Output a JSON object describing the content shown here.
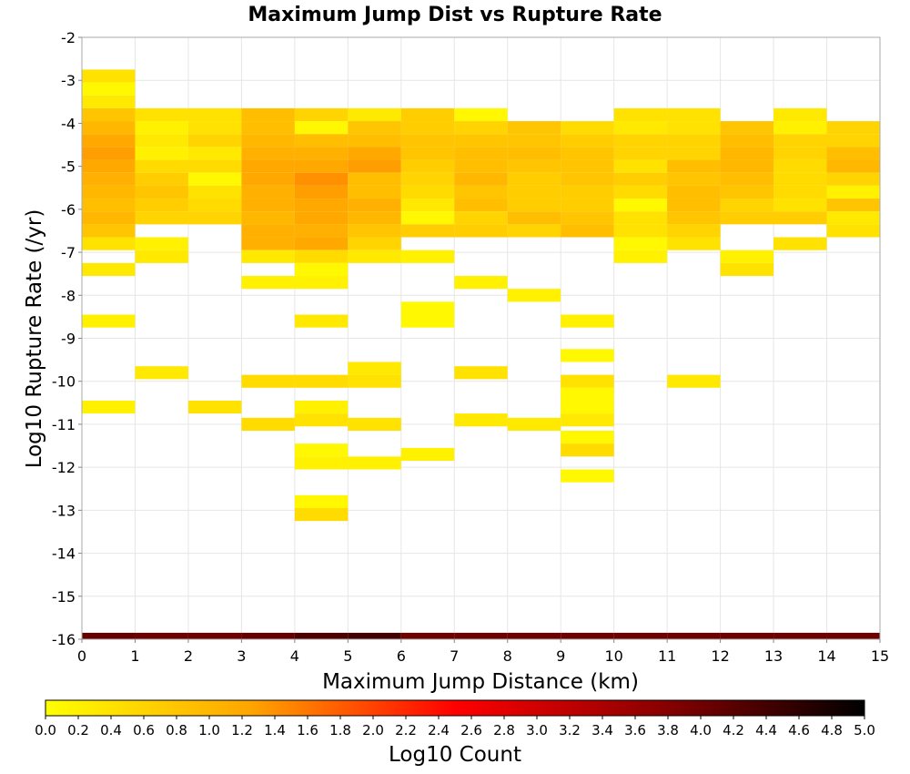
{
  "chart_data": {
    "type": "heatmap",
    "title": "Maximum Jump Dist vs Rupture Rate",
    "xlabel": "Maximum Jump Distance (km)",
    "ylabel": "Log10 Rupture Rate (/yr)",
    "xlim": [
      0,
      15
    ],
    "ylim": [
      -16,
      -2
    ],
    "x_ticks": [
      "0",
      "1",
      "2",
      "3",
      "4",
      "5",
      "6",
      "7",
      "8",
      "9",
      "10",
      "11",
      "12",
      "13",
      "14",
      "15"
    ],
    "y_ticks": [
      "-2",
      "-3",
      "-4",
      "-5",
      "-6",
      "-7",
      "-8",
      "-9",
      "-10",
      "-11",
      "-12",
      "-13",
      "-14",
      "-15",
      "-16"
    ],
    "x_bin_width": 1,
    "y_bin_width": 0.3,
    "grid": true,
    "colorbar": {
      "label": "Log10 Count",
      "range": [
        0,
        5
      ],
      "ticks": [
        "0.0",
        "0.2",
        "0.4",
        "0.6",
        "0.8",
        "1.0",
        "1.2",
        "1.4",
        "1.6",
        "1.8",
        "2.0",
        "2.2",
        "2.4",
        "2.6",
        "2.8",
        "3.0",
        "3.2",
        "3.4",
        "3.6",
        "3.8",
        "4.0",
        "4.2",
        "4.4",
        "4.6",
        "4.8",
        "5.0"
      ],
      "colors": [
        "#ffff00",
        "#ffa500",
        "#ff0000",
        "#8b0000",
        "#000000"
      ]
    },
    "cell_columns": [
      {
        "x": 0,
        "cells": [
          [
            -2.9,
            0.4
          ],
          [
            -3.2,
            0.1
          ],
          [
            -3.5,
            0.3
          ],
          [
            -3.8,
            0.8
          ],
          [
            -4.1,
            1.0
          ],
          [
            -4.4,
            1.2
          ],
          [
            -4.7,
            1.3
          ],
          [
            -5.0,
            1.2
          ],
          [
            -5.3,
            1.1
          ],
          [
            -5.6,
            1.0
          ],
          [
            -5.9,
            0.9
          ],
          [
            -6.2,
            1.0
          ],
          [
            -6.5,
            0.8
          ],
          [
            -6.8,
            0.4
          ],
          [
            -7.4,
            0.3
          ],
          [
            -8.6,
            0.2
          ],
          [
            -10.6,
            0.2
          ],
          [
            -16.0,
            4.1
          ]
        ]
      },
      {
        "x": 1,
        "cells": [
          [
            -3.8,
            0.4
          ],
          [
            -4.1,
            0.2
          ],
          [
            -4.4,
            0.3
          ],
          [
            -4.7,
            0.2
          ],
          [
            -5.0,
            0.5
          ],
          [
            -5.3,
            0.7
          ],
          [
            -5.6,
            0.8
          ],
          [
            -5.9,
            0.7
          ],
          [
            -6.2,
            0.6
          ],
          [
            -6.8,
            0.2
          ],
          [
            -7.1,
            0.3
          ],
          [
            -9.8,
            0.3
          ],
          [
            -16.0,
            4.0
          ]
        ]
      },
      {
        "x": 2,
        "cells": [
          [
            -3.8,
            0.4
          ],
          [
            -4.1,
            0.4
          ],
          [
            -4.4,
            0.6
          ],
          [
            -4.7,
            0.3
          ],
          [
            -5.0,
            0.5
          ],
          [
            -5.3,
            0.1
          ],
          [
            -5.6,
            0.4
          ],
          [
            -5.9,
            0.5
          ],
          [
            -6.2,
            0.6
          ],
          [
            -10.6,
            0.4
          ],
          [
            -16.0,
            4.0
          ]
        ]
      },
      {
        "x": 3,
        "cells": [
          [
            -3.8,
            0.9
          ],
          [
            -4.1,
            0.9
          ],
          [
            -4.4,
            1.0
          ],
          [
            -4.7,
            1.1
          ],
          [
            -5.0,
            1.2
          ],
          [
            -5.3,
            1.2
          ],
          [
            -5.6,
            1.1
          ],
          [
            -5.9,
            1.1
          ],
          [
            -6.2,
            1.0
          ],
          [
            -6.5,
            1.1
          ],
          [
            -6.8,
            1.1
          ],
          [
            -7.1,
            0.3
          ],
          [
            -7.7,
            0.2
          ],
          [
            -10.0,
            0.5
          ],
          [
            -11.0,
            0.5
          ],
          [
            -16.0,
            4.1
          ]
        ]
      },
      {
        "x": 4,
        "cells": [
          [
            -3.8,
            0.6
          ],
          [
            -4.1,
            0.1
          ],
          [
            -4.4,
            0.9
          ],
          [
            -4.7,
            1.1
          ],
          [
            -5.0,
            1.2
          ],
          [
            -5.3,
            1.4
          ],
          [
            -5.6,
            1.3
          ],
          [
            -5.9,
            1.2
          ],
          [
            -6.2,
            1.2
          ],
          [
            -6.5,
            1.1
          ],
          [
            -6.8,
            1.2
          ],
          [
            -7.1,
            0.5
          ],
          [
            -7.4,
            0.1
          ],
          [
            -7.7,
            0.2
          ],
          [
            -8.6,
            0.3
          ],
          [
            -10.0,
            0.5
          ],
          [
            -10.6,
            0.2
          ],
          [
            -10.9,
            0.4
          ],
          [
            -11.6,
            0.1
          ],
          [
            -11.9,
            0.2
          ],
          [
            -12.8,
            0.1
          ],
          [
            -13.1,
            0.5
          ],
          [
            -16.0,
            4.3
          ]
        ]
      },
      {
        "x": 5,
        "cells": [
          [
            -3.8,
            0.3
          ],
          [
            -4.1,
            0.8
          ],
          [
            -4.4,
            0.9
          ],
          [
            -4.7,
            1.2
          ],
          [
            -5.0,
            1.3
          ],
          [
            -5.3,
            0.9
          ],
          [
            -5.6,
            0.9
          ],
          [
            -5.9,
            1.1
          ],
          [
            -6.2,
            1.0
          ],
          [
            -6.5,
            0.8
          ],
          [
            -6.8,
            0.6
          ],
          [
            -7.1,
            0.3
          ],
          [
            -9.7,
            0.3
          ],
          [
            -10.0,
            0.4
          ],
          [
            -11.0,
            0.4
          ],
          [
            -11.9,
            0.2
          ],
          [
            -16.0,
            4.4
          ]
        ]
      },
      {
        "x": 6,
        "cells": [
          [
            -3.8,
            0.7
          ],
          [
            -4.1,
            0.7
          ],
          [
            -4.4,
            0.8
          ],
          [
            -4.7,
            0.8
          ],
          [
            -5.0,
            0.7
          ],
          [
            -5.3,
            0.6
          ],
          [
            -5.6,
            0.5
          ],
          [
            -5.9,
            0.3
          ],
          [
            -6.2,
            0.1
          ],
          [
            -6.5,
            0.7
          ],
          [
            -7.1,
            0.2
          ],
          [
            -8.3,
            0.1
          ],
          [
            -8.6,
            0.1
          ],
          [
            -11.7,
            0.2
          ],
          [
            -16.0,
            4.0
          ]
        ]
      },
      {
        "x": 7,
        "cells": [
          [
            -3.8,
            0.1
          ],
          [
            -4.1,
            0.6
          ],
          [
            -4.4,
            0.8
          ],
          [
            -4.7,
            0.9
          ],
          [
            -5.0,
            0.9
          ],
          [
            -5.3,
            1.0
          ],
          [
            -5.6,
            0.8
          ],
          [
            -5.9,
            0.9
          ],
          [
            -6.2,
            0.6
          ],
          [
            -6.5,
            0.7
          ],
          [
            -7.7,
            0.2
          ],
          [
            -9.8,
            0.4
          ],
          [
            -10.9,
            0.3
          ],
          [
            -16.0,
            4.0
          ]
        ]
      },
      {
        "x": 8,
        "cells": [
          [
            -4.1,
            0.8
          ],
          [
            -4.4,
            0.8
          ],
          [
            -4.7,
            0.9
          ],
          [
            -5.0,
            0.8
          ],
          [
            -5.3,
            0.7
          ],
          [
            -5.6,
            0.7
          ],
          [
            -5.9,
            0.7
          ],
          [
            -6.2,
            0.9
          ],
          [
            -6.5,
            0.6
          ],
          [
            -8.0,
            0.2
          ],
          [
            -11.0,
            0.3
          ],
          [
            -16.0,
            4.0
          ]
        ]
      },
      {
        "x": 9,
        "cells": [
          [
            -4.1,
            0.5
          ],
          [
            -4.4,
            0.7
          ],
          [
            -4.7,
            0.8
          ],
          [
            -5.0,
            0.8
          ],
          [
            -5.3,
            0.8
          ],
          [
            -5.6,
            0.7
          ],
          [
            -5.9,
            0.7
          ],
          [
            -6.2,
            0.8
          ],
          [
            -6.5,
            0.9
          ],
          [
            -8.6,
            0.2
          ],
          [
            -9.4,
            0.1
          ],
          [
            -10.0,
            0.4
          ],
          [
            -10.3,
            0.1
          ],
          [
            -10.6,
            0.1
          ],
          [
            -10.9,
            0.3
          ],
          [
            -11.3,
            0.1
          ],
          [
            -11.6,
            0.5
          ],
          [
            -12.2,
            0.1
          ],
          [
            -16.0,
            4.0
          ]
        ]
      },
      {
        "x": 10,
        "cells": [
          [
            -3.8,
            0.4
          ],
          [
            -4.1,
            0.3
          ],
          [
            -4.4,
            0.6
          ],
          [
            -4.7,
            0.6
          ],
          [
            -5.0,
            0.4
          ],
          [
            -5.3,
            0.7
          ],
          [
            -5.6,
            0.5
          ],
          [
            -5.9,
            0.1
          ],
          [
            -6.2,
            0.4
          ],
          [
            -6.5,
            0.4
          ],
          [
            -6.8,
            0.1
          ],
          [
            -7.1,
            0.2
          ],
          [
            -16.0,
            4.0
          ]
        ]
      },
      {
        "x": 11,
        "cells": [
          [
            -3.8,
            0.4
          ],
          [
            -4.1,
            0.4
          ],
          [
            -4.4,
            0.6
          ],
          [
            -4.7,
            0.6
          ],
          [
            -5.0,
            0.9
          ],
          [
            -5.3,
            0.8
          ],
          [
            -5.6,
            0.9
          ],
          [
            -5.9,
            0.9
          ],
          [
            -6.2,
            0.8
          ],
          [
            -6.5,
            0.6
          ],
          [
            -6.8,
            0.4
          ],
          [
            -10.0,
            0.3
          ],
          [
            -16.0,
            4.0
          ]
        ]
      },
      {
        "x": 12,
        "cells": [
          [
            -4.1,
            0.8
          ],
          [
            -4.4,
            0.9
          ],
          [
            -4.7,
            1.0
          ],
          [
            -5.0,
            1.0
          ],
          [
            -5.3,
            0.9
          ],
          [
            -5.6,
            0.8
          ],
          [
            -5.9,
            0.6
          ],
          [
            -6.2,
            0.7
          ],
          [
            -7.1,
            0.2
          ],
          [
            -7.4,
            0.4
          ],
          [
            -16.0,
            4.0
          ]
        ]
      },
      {
        "x": 13,
        "cells": [
          [
            -3.8,
            0.3
          ],
          [
            -4.1,
            0.2
          ],
          [
            -4.4,
            0.6
          ],
          [
            -4.7,
            0.6
          ],
          [
            -5.0,
            0.5
          ],
          [
            -5.3,
            0.5
          ],
          [
            -5.6,
            0.5
          ],
          [
            -5.9,
            0.4
          ],
          [
            -6.2,
            0.7
          ],
          [
            -6.8,
            0.4
          ],
          [
            -16.0,
            4.0
          ]
        ]
      },
      {
        "x": 14,
        "cells": [
          [
            -4.1,
            0.6
          ],
          [
            -4.4,
            0.6
          ],
          [
            -4.7,
            0.9
          ],
          [
            -5.0,
            1.0
          ],
          [
            -5.3,
            0.6
          ],
          [
            -5.6,
            0.2
          ],
          [
            -5.9,
            0.8
          ],
          [
            -6.2,
            0.3
          ],
          [
            -6.5,
            0.4
          ],
          [
            -16.0,
            4.0
          ]
        ]
      }
    ]
  }
}
